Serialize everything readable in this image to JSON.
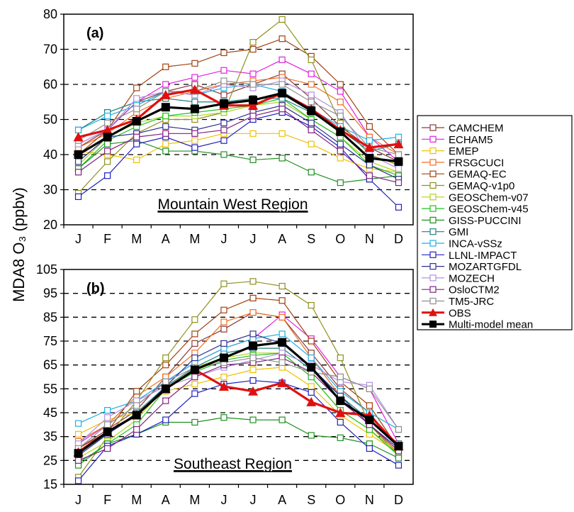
{
  "ylabel": "MDA8 O₃ (ppbv)",
  "months": [
    "J",
    "F",
    "M",
    "A",
    "M",
    "J",
    "J",
    "A",
    "S",
    "O",
    "N",
    "D"
  ],
  "legend": {
    "placement": "right",
    "entries": [
      "CAMCHEM",
      "ECHAM5",
      "EMEP",
      "FRSGCUCI",
      "GEMAQ-EC",
      "GEMAQ-v1p0",
      "GEOSChem-v07",
      "GEOSChem-v45",
      "GISS-PUCCINI",
      "GMI",
      "INCA-vSSz",
      "LLNL-IMPACT",
      "MOZARTGFDL",
      "MOZECH",
      "OsloCTM2",
      "TM5-JRC",
      "OBS",
      "Multi-model mean"
    ]
  },
  "chart_data": [
    {
      "type": "line",
      "panel_label": "(a)",
      "region_label": "Mountain West Region",
      "ylim": [
        20,
        80
      ],
      "yticks": [
        20,
        30,
        40,
        50,
        60,
        70,
        80
      ],
      "grid": "dashed horizontal at 30, 40, 50, 60, 70",
      "categories": [
        "J",
        "F",
        "M",
        "A",
        "M",
        "J",
        "J",
        "A",
        "S",
        "O",
        "N",
        "D"
      ],
      "series": [
        {
          "name": "CAMCHEM",
          "color": "#8b3a3a",
          "values": [
            42,
            47,
            55,
            58,
            60,
            57,
            60,
            63,
            56,
            48,
            42,
            38
          ]
        },
        {
          "name": "ECHAM5",
          "color": "#e020e0",
          "values": [
            43,
            47,
            55,
            60,
            62,
            64,
            63,
            67,
            63,
            58,
            45,
            38
          ]
        },
        {
          "name": "EMEP",
          "color": "#f0c000",
          "values": [
            41,
            40,
            38.5,
            43,
            44,
            46,
            46,
            46,
            43,
            39,
            36,
            35
          ]
        },
        {
          "name": "FRSGCUCI",
          "color": "#f07020",
          "values": [
            42,
            46,
            52,
            56,
            58,
            60,
            61,
            62,
            60,
            55,
            45,
            40
          ]
        },
        {
          "name": "GEMAQ-EC",
          "color": "#a04010",
          "values": [
            40,
            47,
            59,
            65,
            66,
            69,
            70,
            73,
            68,
            60,
            48,
            40
          ]
        },
        {
          "name": "GEMAQ-v1p0",
          "color": "#909020",
          "values": [
            29,
            38,
            46,
            50,
            50,
            52,
            72,
            78.5,
            67,
            49,
            40,
            37
          ]
        },
        {
          "name": "GEOSChem-v07",
          "color": "#b0d020",
          "values": [
            37,
            45,
            49,
            51,
            51,
            52,
            54,
            55,
            50,
            45,
            38,
            35
          ]
        },
        {
          "name": "GEOSChem-v45",
          "color": "#20c020",
          "values": [
            36,
            44,
            48,
            51,
            52,
            53,
            54,
            56,
            50,
            45,
            37,
            34
          ]
        },
        {
          "name": "GISS-PUCCINI",
          "color": "#209020",
          "values": [
            36,
            43,
            44,
            41,
            41,
            40,
            38.5,
            39,
            35,
            32,
            33,
            34
          ]
        },
        {
          "name": "GMI",
          "color": "#208080",
          "values": [
            47,
            52,
            55,
            56,
            55,
            55,
            56,
            56,
            52,
            47,
            41,
            43
          ]
        },
        {
          "name": "INCA-vSSz",
          "color": "#20b0e0",
          "values": [
            47,
            51,
            54,
            58,
            57,
            59,
            60,
            58,
            53,
            48,
            44,
            45
          ]
        },
        {
          "name": "LLNL-IMPACT",
          "color": "#2020c0",
          "values": [
            28,
            34,
            43,
            45,
            42,
            44,
            50,
            52,
            48,
            42,
            33,
            25
          ]
        },
        {
          "name": "MOZARTGFDL",
          "color": "#303090",
          "values": [
            38,
            45,
            46,
            48,
            47,
            49,
            52,
            54,
            49,
            43,
            37,
            33
          ]
        },
        {
          "name": "MOZECH",
          "color": "#b090e0",
          "values": [
            43,
            47,
            56,
            58,
            57,
            60,
            59,
            61,
            57,
            52,
            40,
            36
          ]
        },
        {
          "name": "OsloCTM2",
          "color": "#802080",
          "values": [
            35,
            41,
            45,
            46,
            46,
            47,
            51,
            53,
            47,
            41,
            34,
            32
          ]
        },
        {
          "name": "TM5-JRC",
          "color": "#909090",
          "values": [
            44,
            49,
            53,
            58,
            58,
            61,
            60,
            60,
            55,
            51,
            42,
            40
          ]
        },
        {
          "name": "OBS",
          "color": "#e01010",
          "marker": "triangle",
          "values": [
            45,
            47,
            50,
            57,
            58.5,
            54,
            54,
            57.5,
            53,
            47,
            42,
            43
          ]
        },
        {
          "name": "Multi-model mean",
          "color": "#000000",
          "marker": "square",
          "values": [
            40,
            45,
            49.5,
            53.5,
            53,
            54.5,
            55.5,
            57.5,
            52.5,
            46.5,
            39,
            38
          ]
        }
      ]
    },
    {
      "type": "line",
      "panel_label": "(b)",
      "region_label": "Southeast Region",
      "ylim": [
        15,
        105
      ],
      "yticks": [
        15,
        25,
        35,
        45,
        55,
        65,
        75,
        85,
        95,
        105
      ],
      "grid": "dashed horizontal at 25, 35, 45, 55, 65, 75, 85, 95",
      "categories": [
        "J",
        "F",
        "M",
        "A",
        "M",
        "J",
        "J",
        "A",
        "S",
        "O",
        "N",
        "D"
      ],
      "series": [
        {
          "name": "CAMCHEM",
          "color": "#8b3a3a",
          "values": [
            30,
            38,
            46,
            60,
            74,
            80,
            87,
            85,
            70,
            55,
            45,
            30
          ]
        },
        {
          "name": "ECHAM5",
          "color": "#e020e0",
          "values": [
            32,
            40,
            48,
            58,
            66,
            72,
            76,
            86,
            76,
            60,
            55,
            32
          ]
        },
        {
          "name": "EMEP",
          "color": "#f0c000",
          "values": [
            36,
            42,
            45,
            54,
            57,
            60,
            63,
            64,
            56,
            44,
            36,
            28
          ]
        },
        {
          "name": "FRSGCUCI",
          "color": "#f07020",
          "values": [
            33,
            40,
            52,
            60,
            70,
            83,
            87,
            85,
            68,
            52,
            40,
            28
          ]
        },
        {
          "name": "GEMAQ-EC",
          "color": "#a04010",
          "values": [
            30,
            37,
            54,
            65,
            78,
            88,
            93,
            92,
            75,
            58,
            48,
            30
          ]
        },
        {
          "name": "GEMAQ-v1p0",
          "color": "#909020",
          "values": [
            18,
            35,
            50,
            68,
            84,
            99,
            100,
            98,
            90,
            68,
            40,
            27
          ]
        },
        {
          "name": "GEOSChem-v07",
          "color": "#b0d020",
          "values": [
            26,
            33,
            42,
            56,
            64,
            68,
            70,
            70,
            60,
            46,
            38,
            28
          ]
        },
        {
          "name": "GEOSChem-v45",
          "color": "#20c020",
          "values": [
            24,
            32,
            40,
            55,
            62,
            67,
            69,
            70,
            60,
            46,
            38,
            27
          ]
        },
        {
          "name": "GISS-PUCCINI",
          "color": "#209020",
          "values": [
            23,
            32,
            36,
            41,
            41,
            43,
            42,
            42,
            35.5,
            34.5,
            32,
            26
          ]
        },
        {
          "name": "GMI",
          "color": "#208080",
          "values": [
            28,
            36,
            45,
            56,
            64,
            70,
            72,
            72,
            63,
            52,
            42,
            32
          ]
        },
        {
          "name": "INCA-vSSz",
          "color": "#20b0e0",
          "values": [
            40.5,
            46,
            50,
            58,
            66,
            72,
            76,
            78,
            68,
            54,
            45,
            38
          ]
        },
        {
          "name": "LLNL-IMPACT",
          "color": "#2020c0",
          "values": [
            16.5,
            31,
            36,
            42,
            53,
            57,
            58.5,
            57.5,
            53.5,
            41,
            30,
            23
          ]
        },
        {
          "name": "MOZARTGFDL",
          "color": "#303090",
          "values": [
            27,
            36,
            44,
            56,
            68,
            74,
            78,
            74,
            64,
            52,
            40,
            30
          ]
        },
        {
          "name": "MOZECH",
          "color": "#b090e0",
          "values": [
            32,
            43,
            50,
            56,
            60,
            64,
            67,
            70,
            65,
            58,
            56.5,
            38
          ]
        },
        {
          "name": "OsloCTM2",
          "color": "#802080",
          "values": [
            25,
            30,
            38,
            50,
            60,
            65,
            66,
            68,
            62,
            50,
            40,
            29
          ]
        },
        {
          "name": "TM5-JRC",
          "color": "#909090",
          "values": [
            30,
            40,
            48,
            58,
            64,
            66,
            68,
            66,
            62,
            60,
            55,
            38
          ]
        },
        {
          "name": "OBS",
          "color": "#e01010",
          "marker": "triangle",
          "values": [
            28.5,
            37,
            44,
            55,
            63,
            56,
            54,
            57.5,
            49.5,
            45,
            44,
            31
          ]
        },
        {
          "name": "Multi-model mean",
          "color": "#000000",
          "marker": "square",
          "values": [
            28,
            37,
            44,
            55,
            63,
            68,
            73,
            74.5,
            64,
            50,
            42,
            31
          ]
        }
      ]
    }
  ]
}
